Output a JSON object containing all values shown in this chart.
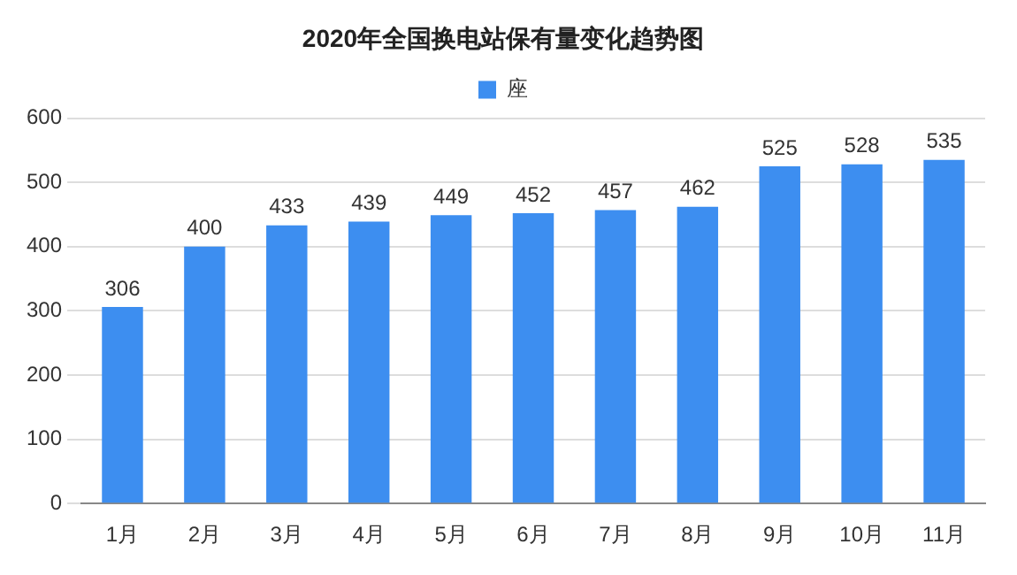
{
  "chart_data": {
    "type": "bar",
    "title": "2020年全国换电站保有量变化趋势图",
    "categories": [
      "1月",
      "2月",
      "3月",
      "4月",
      "5月",
      "6月",
      "7月",
      "8月",
      "9月",
      "10月",
      "11月"
    ],
    "series": [
      {
        "name": "座",
        "color": "#3d8ef0",
        "values": [
          306,
          400,
          433,
          439,
          449,
          452,
          457,
          462,
          525,
          528,
          535
        ]
      }
    ],
    "ylim": [
      0,
      600
    ],
    "yticks": [
      0,
      100,
      200,
      300,
      400,
      500,
      600
    ],
    "grid": "y",
    "legend": "top",
    "data_labels": true
  }
}
